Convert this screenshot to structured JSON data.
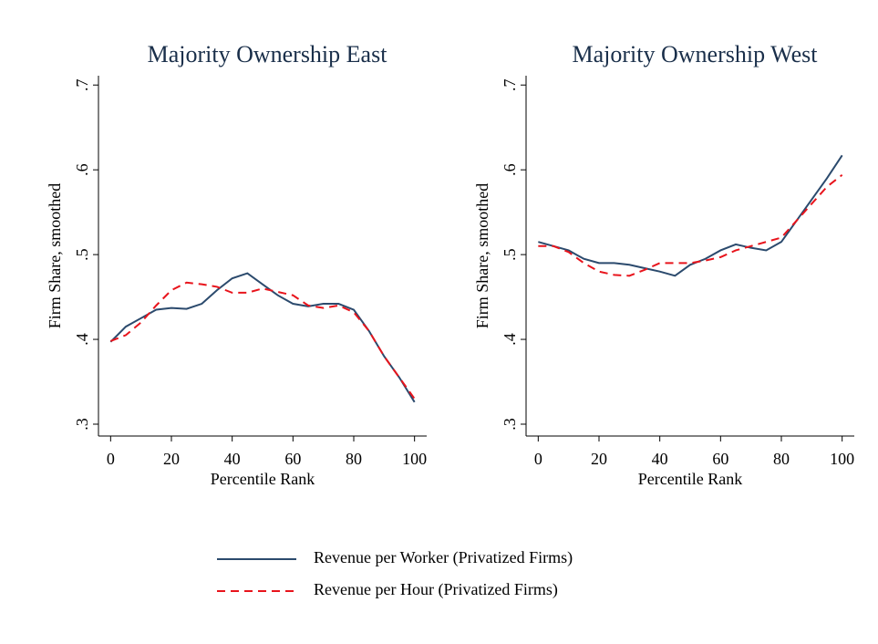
{
  "chart_data": [
    {
      "type": "line",
      "title": "Majority Ownership East",
      "xlabel": "Percentile Rank",
      "ylabel": "Firm Share, smoothed",
      "x": [
        0,
        5,
        10,
        15,
        20,
        25,
        30,
        35,
        40,
        45,
        50,
        55,
        60,
        65,
        70,
        75,
        80,
        85,
        90,
        95,
        100
      ],
      "series": [
        {
          "name": "Revenue per Worker (Privatized Firms)",
          "color": "#2b4a6d",
          "dash": "solid",
          "values": [
            0.397,
            0.415,
            0.425,
            0.435,
            0.437,
            0.436,
            0.442,
            0.458,
            0.472,
            0.478,
            0.465,
            0.452,
            0.442,
            0.439,
            0.442,
            0.442,
            0.435,
            0.41,
            0.38,
            0.355,
            0.326
          ]
        },
        {
          "name": "Revenue per Hour (Privatized Firms)",
          "color": "#e8141c",
          "dash": "dashed",
          "values": [
            0.398,
            0.405,
            0.42,
            0.44,
            0.458,
            0.467,
            0.465,
            0.462,
            0.455,
            0.455,
            0.46,
            0.456,
            0.452,
            0.44,
            0.437,
            0.44,
            0.432,
            0.41,
            0.38,
            0.355,
            0.33
          ]
        }
      ],
      "xlim": [
        -4,
        104
      ],
      "xticks": [
        0,
        20,
        40,
        60,
        80,
        100
      ],
      "ylim": [
        0.286,
        0.711
      ],
      "yticks": [
        {
          "value": 0.3,
          "label": ".3"
        },
        {
          "value": 0.4,
          "label": ".4"
        },
        {
          "value": 0.5,
          "label": ".5"
        },
        {
          "value": 0.6,
          "label": ".6"
        },
        {
          "value": 0.7,
          "label": ".7"
        }
      ]
    },
    {
      "type": "line",
      "title": "Majority Ownership West",
      "xlabel": "Percentile Rank",
      "ylabel": "Firm Share, smoothed",
      "x": [
        0,
        5,
        10,
        15,
        20,
        25,
        30,
        35,
        40,
        45,
        50,
        55,
        60,
        65,
        70,
        75,
        80,
        85,
        90,
        95,
        100
      ],
      "series": [
        {
          "name": "Revenue per Worker (Privatized Firms)",
          "color": "#2b4a6d",
          "dash": "solid",
          "values": [
            0.515,
            0.51,
            0.505,
            0.495,
            0.49,
            0.49,
            0.488,
            0.484,
            0.48,
            0.475,
            0.488,
            0.495,
            0.505,
            0.512,
            0.508,
            0.505,
            0.515,
            0.54,
            0.565,
            0.59,
            0.617
          ]
        },
        {
          "name": "Revenue per Hour (Privatized Firms)",
          "color": "#e8141c",
          "dash": "dashed",
          "values": [
            0.51,
            0.51,
            0.503,
            0.49,
            0.48,
            0.476,
            0.475,
            0.482,
            0.49,
            0.49,
            0.49,
            0.493,
            0.497,
            0.505,
            0.51,
            0.515,
            0.52,
            0.54,
            0.56,
            0.58,
            0.594
          ]
        }
      ],
      "xlim": [
        -4,
        104
      ],
      "xticks": [
        0,
        20,
        40,
        60,
        80,
        100
      ],
      "ylim": [
        0.286,
        0.711
      ],
      "yticks": [
        {
          "value": 0.3,
          "label": ".3"
        },
        {
          "value": 0.4,
          "label": ".4"
        },
        {
          "value": 0.5,
          "label": ".5"
        },
        {
          "value": 0.6,
          "label": ".6"
        },
        {
          "value": 0.7,
          "label": ".7"
        }
      ]
    }
  ]
}
